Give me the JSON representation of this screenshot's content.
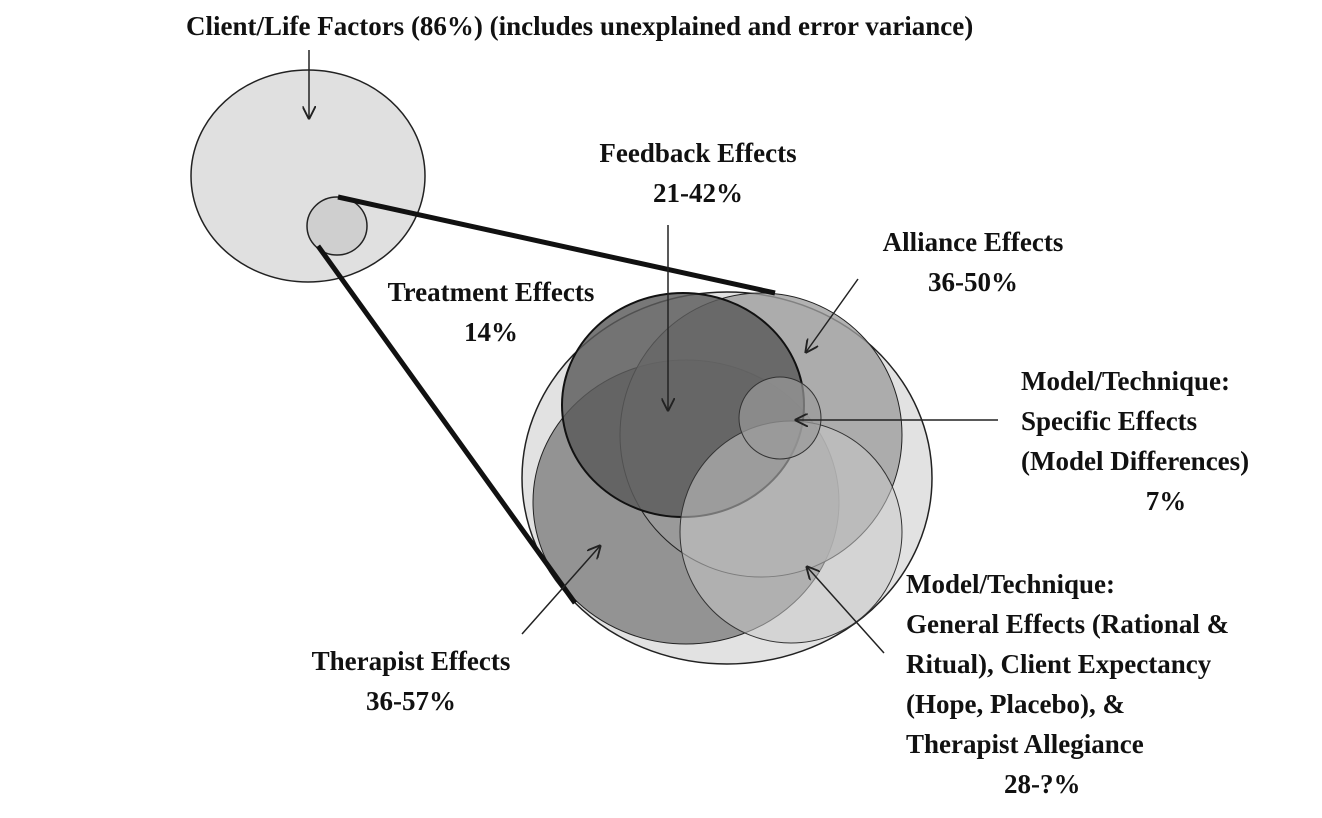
{
  "labels": {
    "client_life": {
      "lines": [
        "Client/Life Factors (86%) (includes unexplained and error variance)"
      ]
    },
    "feedback": {
      "lines": [
        "Feedback Effects",
        "21-42%"
      ]
    },
    "alliance": {
      "lines": [
        "Alliance Effects",
        "36-50%"
      ]
    },
    "treatment": {
      "lines": [
        "Treatment Effects",
        "14%"
      ]
    },
    "model_specific": {
      "lines": [
        "Model/Technique:",
        "Specific Effects",
        "(Model Differences)",
        "7%"
      ]
    },
    "model_general": {
      "lines": [
        "Model/Technique:",
        "General Effects (Rational &",
        "Ritual), Client Expectancy",
        "(Hope, Placebo), &",
        "Therapist Allegiance",
        "28-?%"
      ]
    },
    "therapist": {
      "lines": [
        "Therapist Effects",
        "36-57%"
      ]
    }
  },
  "colors": {
    "outer_circle": "#e2e2e2",
    "client_circle": "#e0e0e0",
    "client_inner": "#cfcfcf",
    "therapist_circle": "#8e8e8e",
    "alliance_circle": "#9c9c9c",
    "feedback_circle": "#5a5a5a",
    "general_circle": "#c8c8c8",
    "specific_circle": "#9a9a9a",
    "stroke": "#222222"
  }
}
